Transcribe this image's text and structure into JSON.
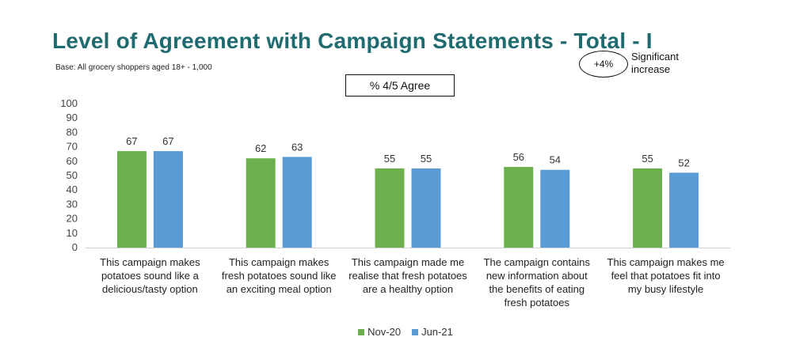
{
  "header": {
    "title": "Level of Agreement with Campaign Statements - Total - I",
    "base_note": "Base: All grocery shoppers aged 18+ - 1,000",
    "significance_value": "+4%",
    "significance_label": "Significant increase"
  },
  "chart_data": {
    "type": "bar",
    "title": "% 4/5 Agree",
    "categories": [
      [
        "This campaign makes",
        "potatoes sound like a",
        "delicious/tasty option"
      ],
      [
        "This campaign makes",
        "fresh potatoes sound like",
        "an exciting meal option"
      ],
      [
        "This campaign made me",
        "realise that fresh potatoes",
        "are a healthy option"
      ],
      [
        "The campaign contains",
        "new information about",
        "the benefits of eating",
        "fresh potatoes"
      ],
      [
        "This campaign makes me",
        "feel that potatoes fit into",
        "my busy lifestyle"
      ]
    ],
    "series": [
      {
        "name": "Nov-20",
        "color": "#6ab04c",
        "values": [
          67,
          62,
          55,
          56,
          55
        ]
      },
      {
        "name": "Jun-21",
        "color": "#5b9bd5",
        "values": [
          67,
          63,
          55,
          54,
          52
        ]
      }
    ],
    "ylim": [
      0,
      100
    ],
    "yticks": [
      0,
      10,
      20,
      30,
      40,
      50,
      60,
      70,
      80,
      90,
      100
    ],
    "grid": false,
    "legend_position": "bottom"
  }
}
